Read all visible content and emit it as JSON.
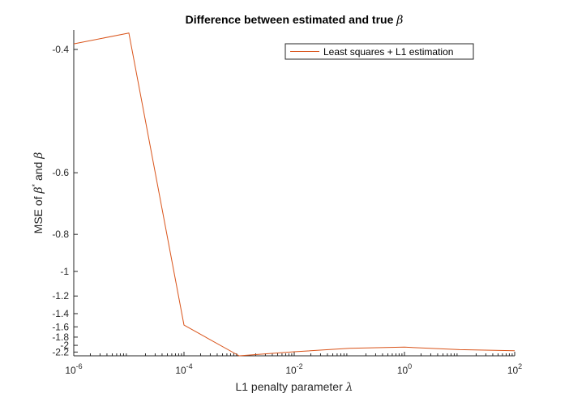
{
  "chart_data": {
    "type": "line",
    "title": "Difference between estimated and true ",
    "title_symbol": "β",
    "xlabel": "L1 penalty parameter ",
    "xlabel_symbol": "λ",
    "ylabel_prefix": "MSE of ",
    "ylabel_beta_star": "β",
    "ylabel_star": "*",
    "ylabel_and": " and ",
    "ylabel_beta": "β",
    "x_scale": "log",
    "y_scale": "reciprocal",
    "xlim": [
      1e-06,
      100
    ],
    "ylim": [
      -2.33,
      -0.38
    ],
    "x_ticks": [
      {
        "value": 1e-06,
        "base": "10",
        "exp": "-6"
      },
      {
        "value": 0.0001,
        "base": "10",
        "exp": "-4"
      },
      {
        "value": 0.01,
        "base": "10",
        "exp": "-2"
      },
      {
        "value": 1,
        "base": "10",
        "exp": "0"
      },
      {
        "value": 100,
        "base": "10",
        "exp": "2"
      }
    ],
    "y_ticks": [
      {
        "value": -0.4,
        "label": "-0.4"
      },
      {
        "value": -0.6,
        "label": "-0.6"
      },
      {
        "value": -0.8,
        "label": "-0.8"
      },
      {
        "value": -1,
        "label": "-1"
      },
      {
        "value": -1.2,
        "label": "-1.2"
      },
      {
        "value": -1.4,
        "label": "-1.4"
      },
      {
        "value": -1.6,
        "label": "-1.6"
      },
      {
        "value": -1.8,
        "label": "-1.8"
      },
      {
        "value": -2,
        "label": "-2"
      },
      {
        "value": -2.2,
        "label": "-2.2"
      }
    ],
    "grid": false,
    "legend_position": "top-right",
    "series": [
      {
        "name": "Least squares + L1 estimation",
        "color": "#d95319",
        "x": [
          1e-06,
          1e-05,
          0.0001,
          0.001,
          0.01,
          0.1,
          1,
          10,
          100
        ],
        "y": [
          -0.394,
          -0.383,
          -1.57,
          -2.33,
          -2.19,
          -2.085,
          -2.05,
          -2.125,
          -2.16
        ]
      }
    ]
  }
}
